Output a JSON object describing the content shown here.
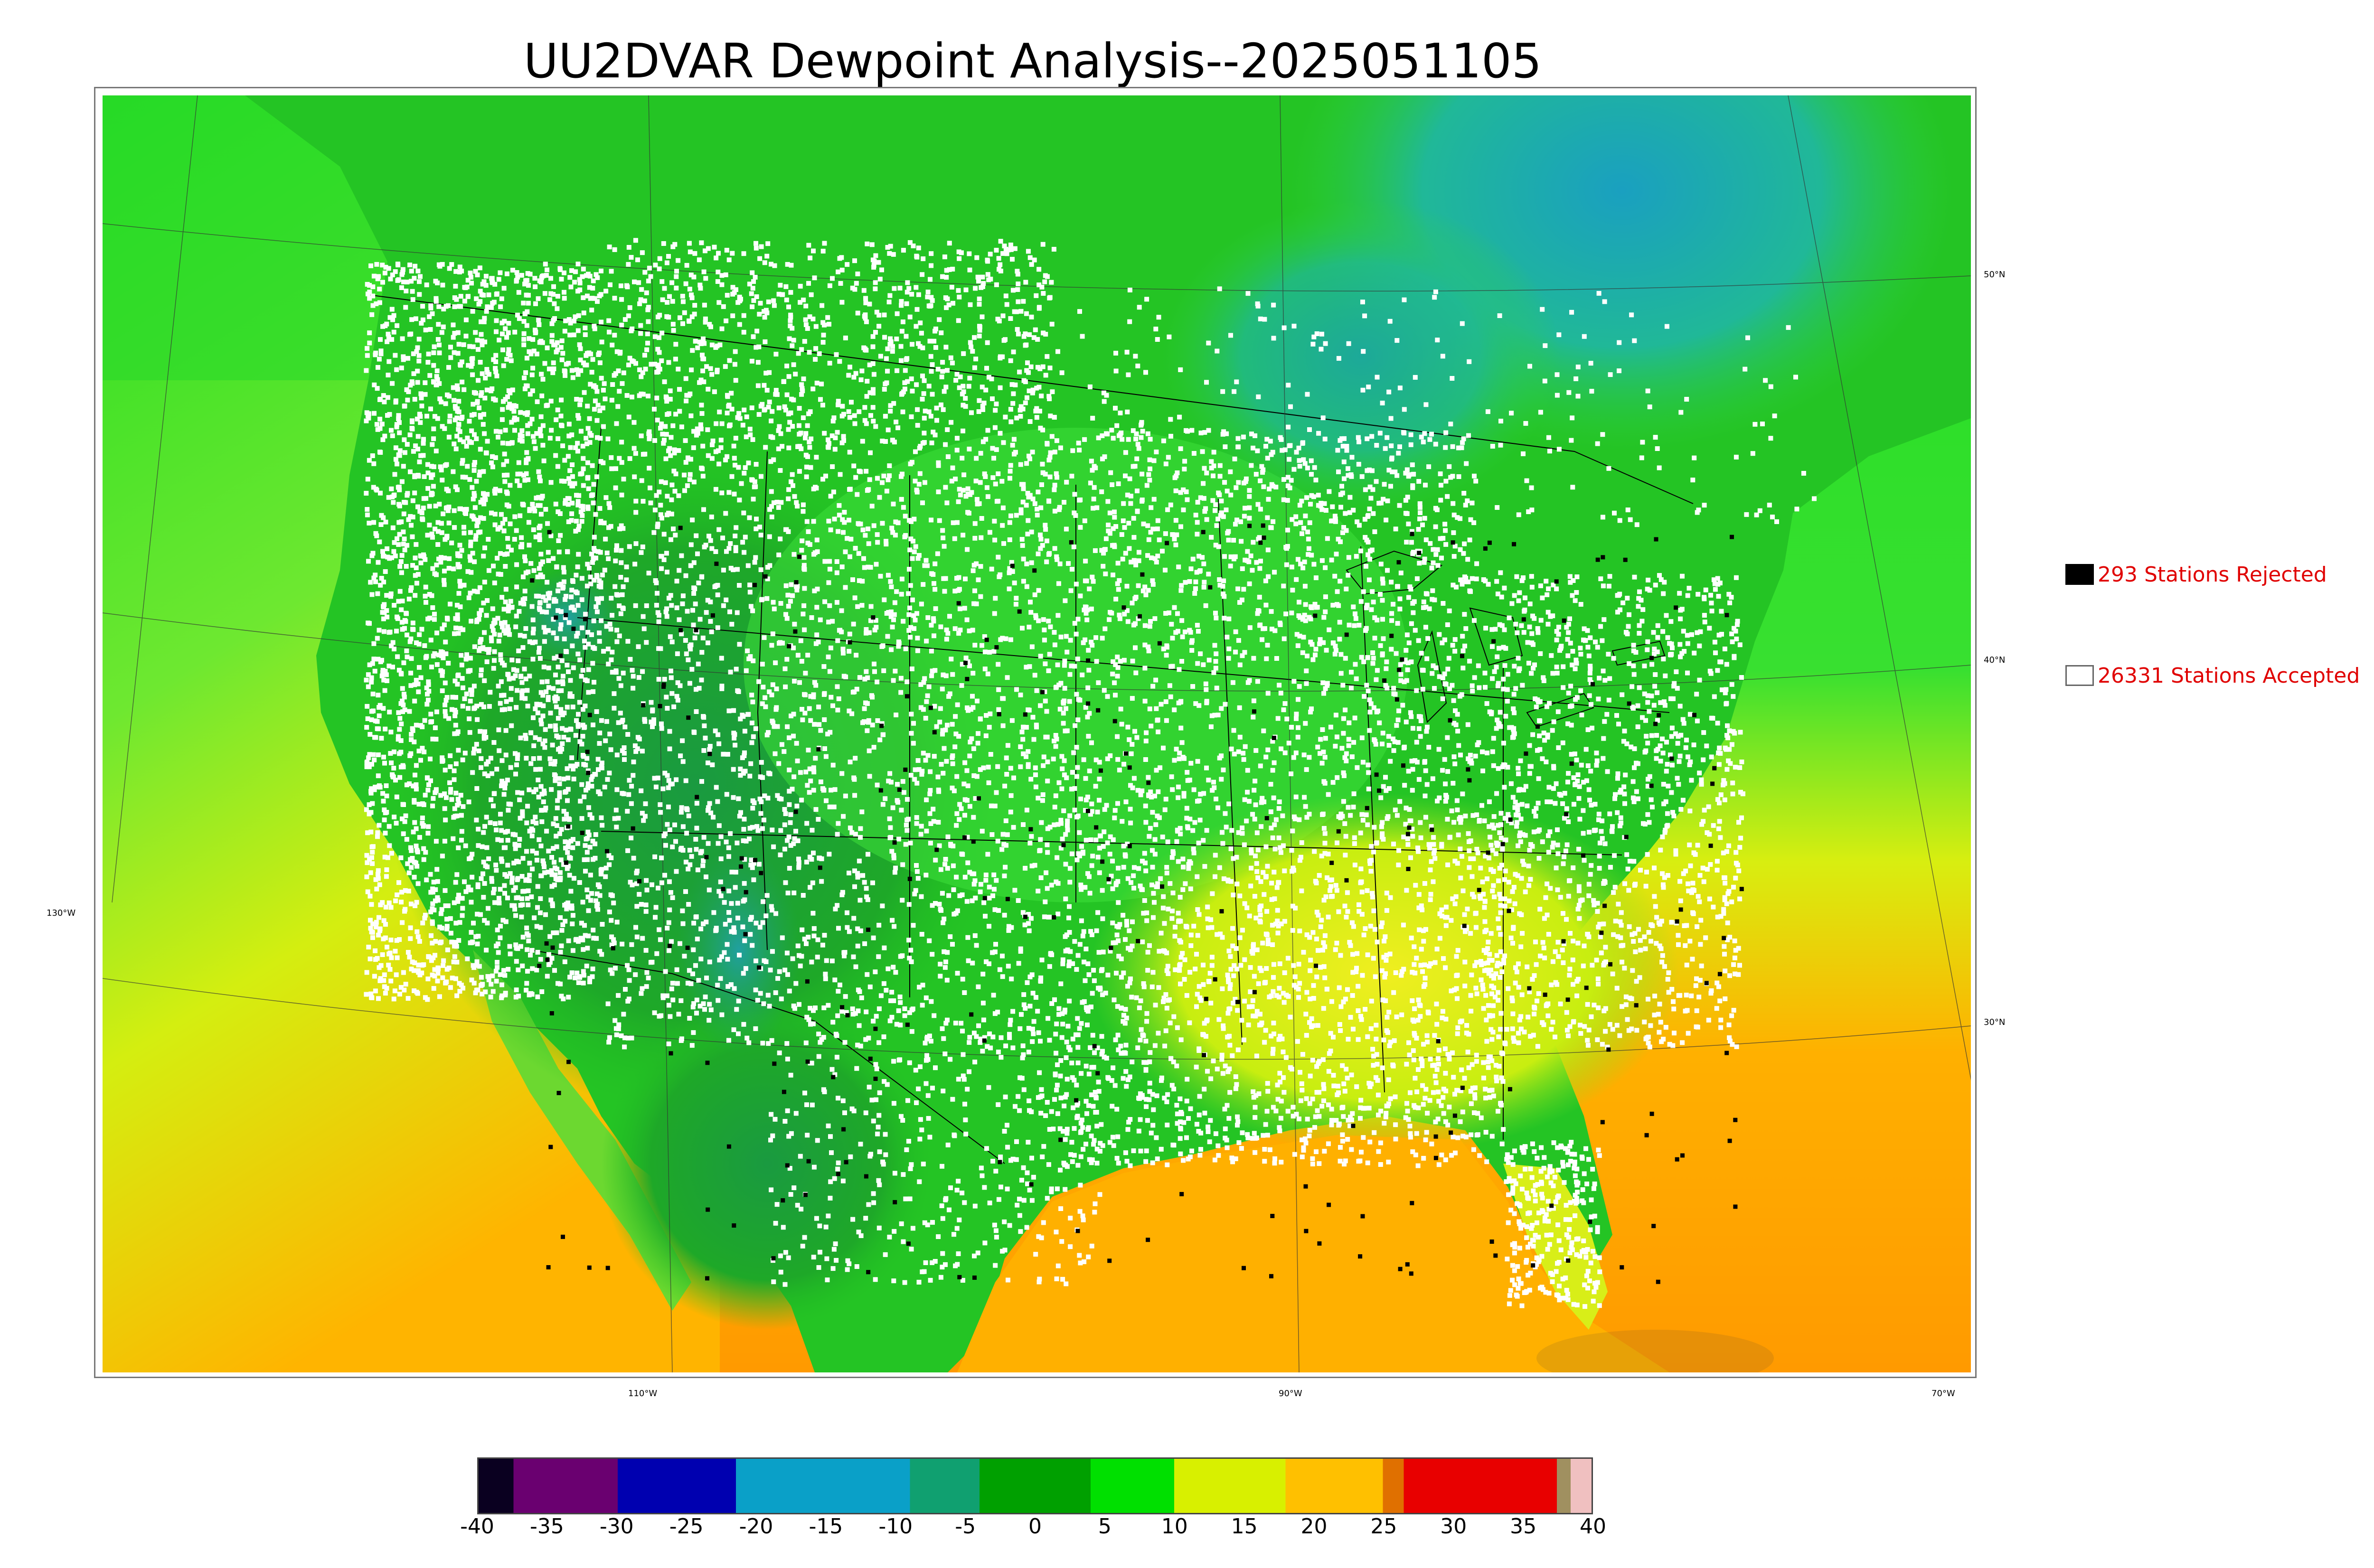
{
  "title": "UU2DVAR Dewpoint Analysis--2025051105",
  "legend": {
    "rejected_label": "293 Stations Rejected",
    "accepted_label": "26331 Stations Accepted",
    "rejected_color": "#000000",
    "accepted_color": "#ffffff",
    "label_color": "#e00000"
  },
  "longitude_labels": [
    "130°W",
    "110°W",
    "90°W",
    "70°W"
  ],
  "latitude_labels": [
    "50°N",
    "40°N",
    "30°N"
  ],
  "colorbar": {
    "ticks": [
      "-40",
      "-35",
      "-30",
      "-25",
      "-20",
      "-15",
      "-10",
      "-5",
      "0",
      "5",
      "10",
      "15",
      "20",
      "25",
      "30",
      "35",
      "40"
    ],
    "range": [
      -40,
      40
    ],
    "bands": [
      {
        "from": -40,
        "to": -37.5,
        "color": "#0a0020"
      },
      {
        "from": -37.5,
        "to": -30,
        "color": "#6a0070"
      },
      {
        "from": -30,
        "to": -21.5,
        "color": "#0000b0"
      },
      {
        "from": -21.5,
        "to": -9,
        "color": "#0aa0c8"
      },
      {
        "from": -9,
        "to": -4,
        "color": "#10a070"
      },
      {
        "from": -4,
        "to": 4,
        "color": "#00a000"
      },
      {
        "from": 4,
        "to": 10,
        "color": "#00e000"
      },
      {
        "from": 10,
        "to": 18,
        "color": "#d8f000"
      },
      {
        "from": 18,
        "to": 25,
        "color": "#ffc000"
      },
      {
        "from": 25,
        "to": 26.5,
        "color": "#e07000"
      },
      {
        "from": 26.5,
        "to": 37.5,
        "color": "#e80000"
      },
      {
        "from": 37.5,
        "to": 38.5,
        "color": "#a09060"
      },
      {
        "from": 38.5,
        "to": 40,
        "color": "#f0c0c0"
      }
    ]
  },
  "field_colors": {
    "ocean_cool": "#33e633",
    "ocean_warm": "#ffa500",
    "gulf": "#ffb300",
    "dry_interior": "#1a9e1a",
    "moist_plains": "#3ed83e",
    "southeast": "#e8ee10",
    "canada_dry": "#1aa8b8",
    "northwest_ocean": "#22dd22"
  }
}
